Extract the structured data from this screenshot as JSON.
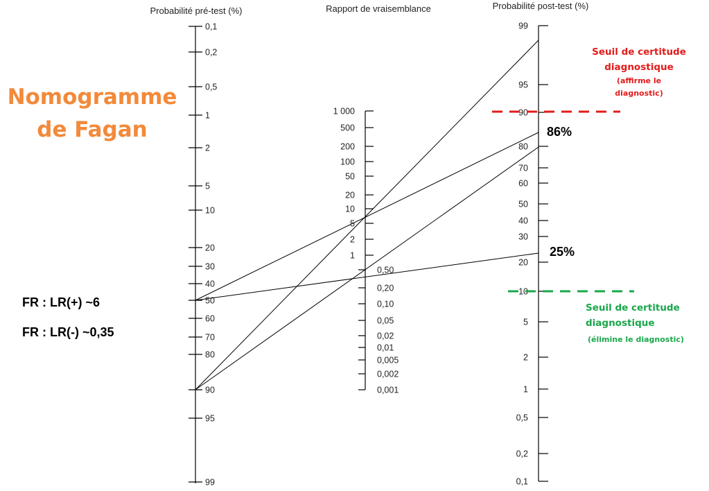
{
  "title": {
    "line1": "Nomogramme",
    "line2": "de Fagan",
    "color": "#f28a3a"
  },
  "axes": {
    "pretest": {
      "title": "Probabilité pré-test (%)",
      "ticks": [
        "0,1",
        "0,2",
        "0,5",
        "1",
        "2",
        "5",
        "10",
        "20",
        "30",
        "40",
        "50",
        "60",
        "70",
        "80",
        "90",
        "95",
        "99"
      ]
    },
    "lr": {
      "title": "Rapport de vraisemblance",
      "ticks_upper": [
        "1 000",
        "500",
        "200",
        "100",
        "50",
        "20",
        "10",
        "5",
        "2",
        "1"
      ],
      "ticks_lower": [
        "0,50",
        "0,20",
        "0,10",
        "0,05",
        "0,02",
        "0,01",
        "0,005",
        "0,002",
        "0,001"
      ]
    },
    "posttest": {
      "title": "Probabilité post-test (%)",
      "ticks": [
        "99",
        "95",
        "90",
        "80",
        "70",
        "60",
        "50",
        "40",
        "30",
        "20",
        "10",
        "5",
        "2",
        "1",
        "0,5",
        "0,2",
        "0,1"
      ]
    }
  },
  "annotations": {
    "lr_positive": "FR : LR(+) ~6",
    "lr_negative": "FR : LR(-) ~0,35",
    "result_high": "86%",
    "result_low": "25%"
  },
  "thresholds": {
    "upper": {
      "line1": "Seuil de certitude",
      "line2": "diagnostique",
      "line3": "(affirme le",
      "line4": "diagnostic)",
      "color": "#e31b1b",
      "level_percent": 90
    },
    "lower": {
      "line1": "Seuil de certitude",
      "line2": "diagnostique",
      "line3": "(élimine le diagnostic)",
      "color": "#19a74a",
      "level_percent": 10
    }
  },
  "construction_lines": [
    {
      "from_pretest": "50",
      "to_posttest": "86"
    },
    {
      "from_pretest": "50",
      "to_posttest": "25"
    },
    {
      "from_pretest": "90",
      "to_posttest": "97"
    },
    {
      "from_pretest": "90",
      "to_posttest": "80"
    }
  ]
}
